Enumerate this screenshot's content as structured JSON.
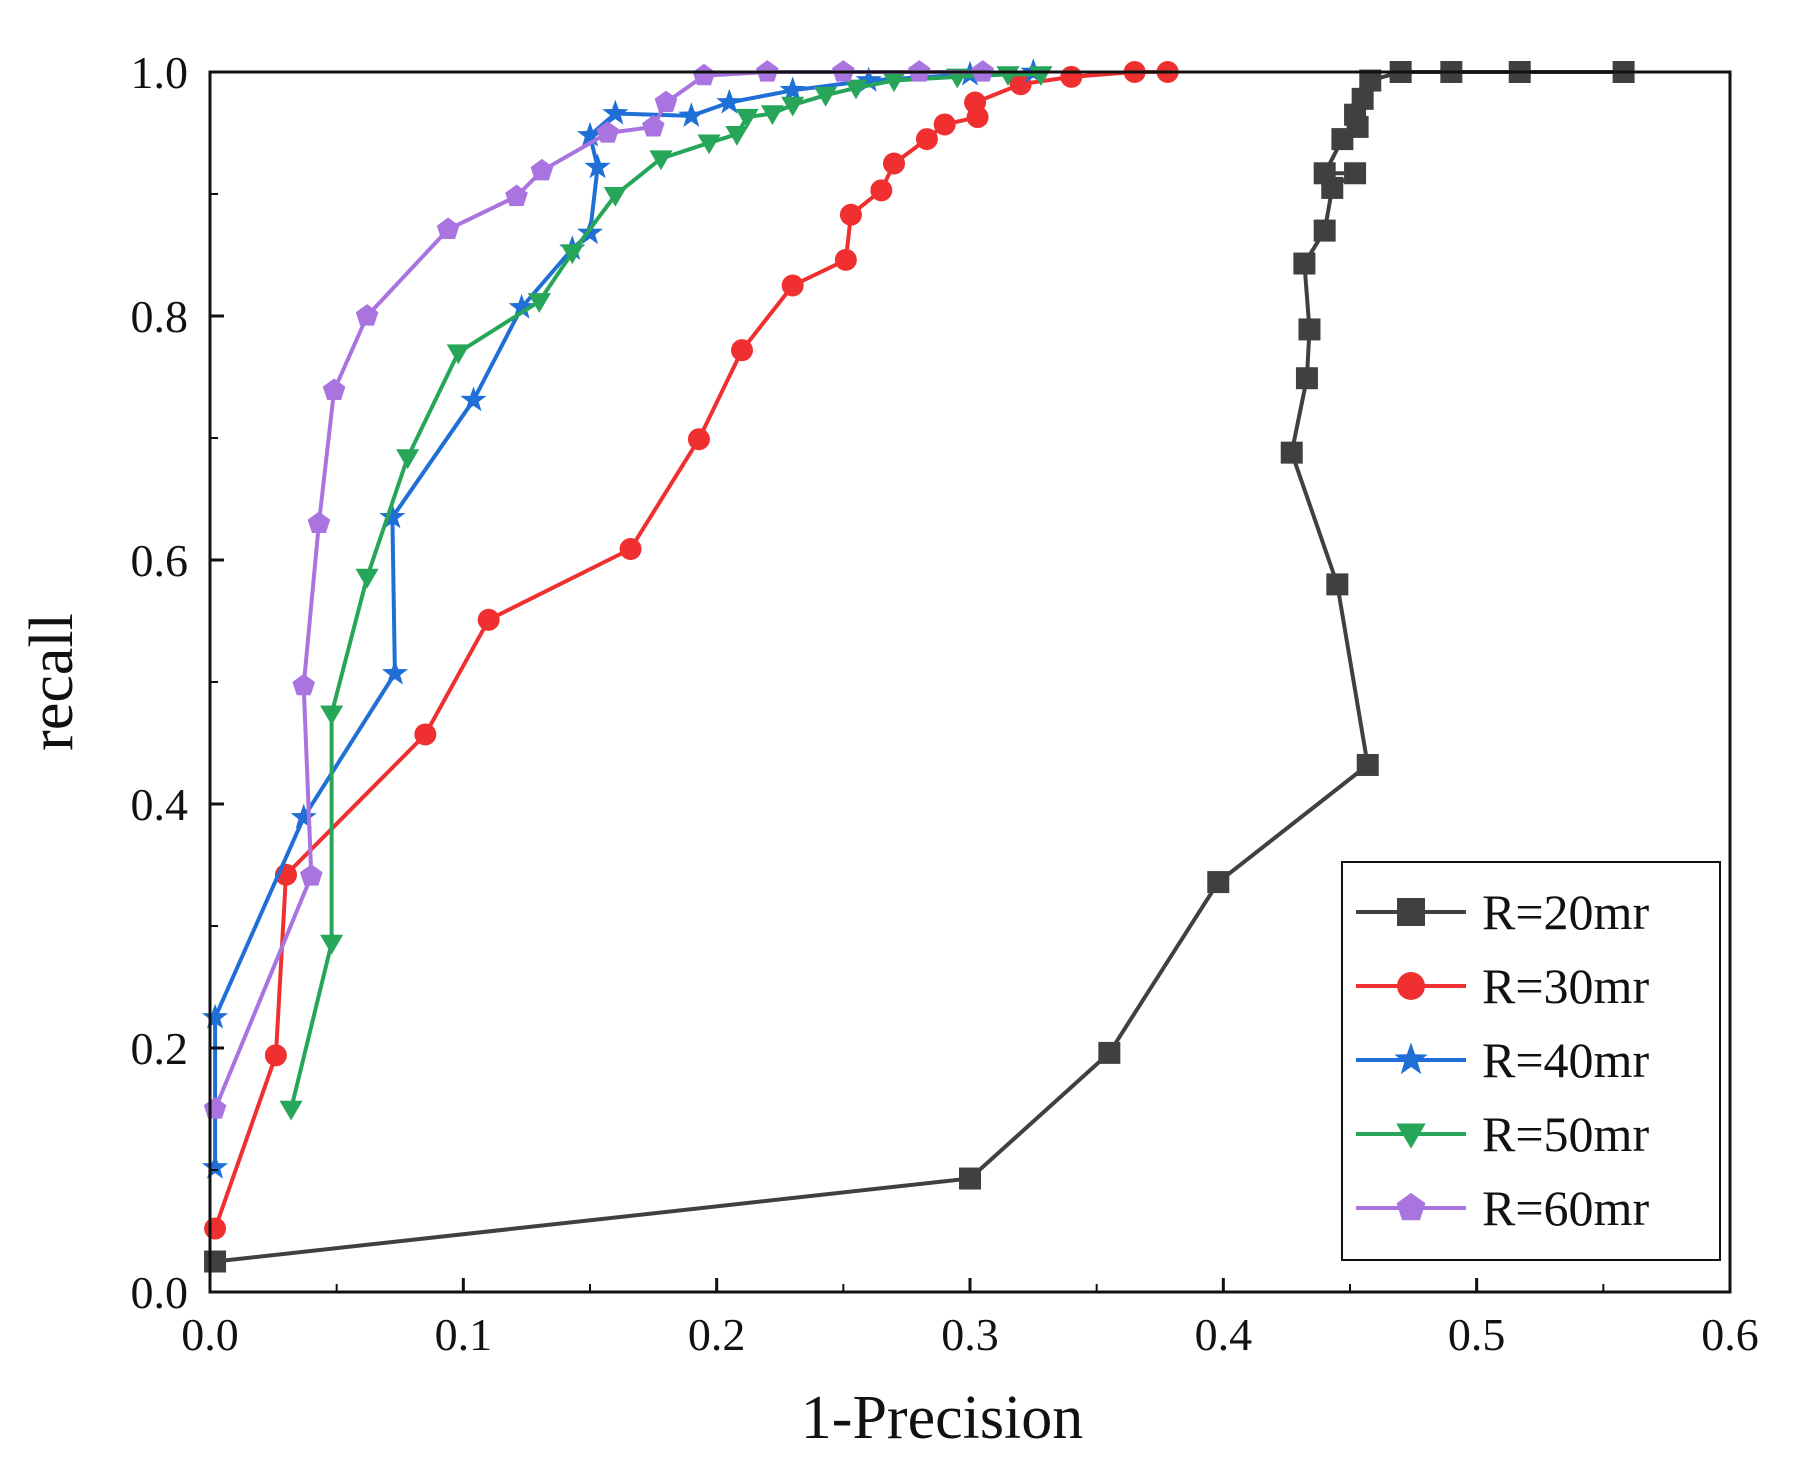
{
  "chart_data": {
    "type": "line",
    "title": "",
    "xlabel": "1-Precision",
    "ylabel": "recall",
    "xlim": [
      0.0,
      0.6
    ],
    "ylim": [
      0.0,
      1.0
    ],
    "xticks": [
      "0.0",
      "0.1",
      "0.2",
      "0.3",
      "0.4",
      "0.5",
      "0.6"
    ],
    "yticks": [
      "0.0",
      "0.2",
      "0.4",
      "0.6",
      "0.8",
      "1.0"
    ],
    "grid": false,
    "legend_position": "bottom-right",
    "series": [
      {
        "name": "R=20mr",
        "color": "#404040",
        "marker": "square",
        "points": [
          [
            0.002,
            0.025
          ],
          [
            0.3,
            0.093
          ],
          [
            0.355,
            0.196
          ],
          [
            0.398,
            0.336
          ],
          [
            0.457,
            0.432
          ],
          [
            0.445,
            0.58
          ],
          [
            0.427,
            0.688
          ],
          [
            0.433,
            0.749
          ],
          [
            0.434,
            0.789
          ],
          [
            0.432,
            0.843
          ],
          [
            0.44,
            0.87
          ],
          [
            0.443,
            0.905
          ],
          [
            0.452,
            0.917
          ],
          [
            0.44,
            0.917
          ],
          [
            0.447,
            0.945
          ],
          [
            0.453,
            0.955
          ],
          [
            0.452,
            0.965
          ],
          [
            0.455,
            0.978
          ],
          [
            0.458,
            0.993
          ],
          [
            0.47,
            1.0
          ],
          [
            0.49,
            1.0
          ],
          [
            0.517,
            1.0
          ],
          [
            0.558,
            1.0
          ]
        ]
      },
      {
        "name": "R=30mr",
        "color": "#f03030",
        "marker": "circle",
        "points": [
          [
            0.002,
            0.052
          ],
          [
            0.026,
            0.194
          ],
          [
            0.03,
            0.342
          ],
          [
            0.085,
            0.457
          ],
          [
            0.11,
            0.551
          ],
          [
            0.166,
            0.609
          ],
          [
            0.193,
            0.699
          ],
          [
            0.21,
            0.772
          ],
          [
            0.23,
            0.825
          ],
          [
            0.251,
            0.846
          ],
          [
            0.253,
            0.883
          ],
          [
            0.265,
            0.903
          ],
          [
            0.27,
            0.925
          ],
          [
            0.283,
            0.945
          ],
          [
            0.29,
            0.957
          ],
          [
            0.303,
            0.963
          ],
          [
            0.302,
            0.975
          ],
          [
            0.32,
            0.99
          ],
          [
            0.34,
            0.996
          ],
          [
            0.365,
            1.0
          ],
          [
            0.378,
            1.0
          ]
        ]
      },
      {
        "name": "R=40mr",
        "color": "#1f6fd6",
        "marker": "star",
        "points": [
          [
            0.002,
            0.102
          ],
          [
            0.002,
            0.225
          ],
          [
            0.037,
            0.389
          ],
          [
            0.073,
            0.507
          ],
          [
            0.072,
            0.635
          ],
          [
            0.104,
            0.731
          ],
          [
            0.123,
            0.807
          ],
          [
            0.143,
            0.855
          ],
          [
            0.15,
            0.868
          ],
          [
            0.153,
            0.922
          ],
          [
            0.15,
            0.948
          ],
          [
            0.16,
            0.966
          ],
          [
            0.19,
            0.964
          ],
          [
            0.205,
            0.975
          ],
          [
            0.23,
            0.985
          ],
          [
            0.26,
            0.993
          ],
          [
            0.3,
            0.998
          ],
          [
            0.325,
            1.0
          ]
        ]
      },
      {
        "name": "R=50mr",
        "color": "#27a65a",
        "marker": "triangle-down",
        "points": [
          [
            0.032,
            0.15
          ],
          [
            0.048,
            0.286
          ],
          [
            0.048,
            0.474
          ],
          [
            0.062,
            0.586
          ],
          [
            0.078,
            0.684
          ],
          [
            0.098,
            0.77
          ],
          [
            0.13,
            0.812
          ],
          [
            0.143,
            0.852
          ],
          [
            0.16,
            0.899
          ],
          [
            0.178,
            0.929
          ],
          [
            0.197,
            0.942
          ],
          [
            0.208,
            0.949
          ],
          [
            0.212,
            0.963
          ],
          [
            0.222,
            0.966
          ],
          [
            0.23,
            0.973
          ],
          [
            0.243,
            0.981
          ],
          [
            0.255,
            0.987
          ],
          [
            0.27,
            0.993
          ],
          [
            0.295,
            0.996
          ],
          [
            0.315,
            0.998
          ],
          [
            0.328,
            0.998
          ]
        ]
      },
      {
        "name": "R=60mr",
        "color": "#a974e0",
        "marker": "pentagon",
        "points": [
          [
            0.002,
            0.15
          ],
          [
            0.04,
            0.341
          ],
          [
            0.037,
            0.497
          ],
          [
            0.043,
            0.63
          ],
          [
            0.049,
            0.739
          ],
          [
            0.062,
            0.8
          ],
          [
            0.094,
            0.871
          ],
          [
            0.121,
            0.898
          ],
          [
            0.131,
            0.919
          ],
          [
            0.157,
            0.95
          ],
          [
            0.175,
            0.955
          ],
          [
            0.18,
            0.975
          ],
          [
            0.195,
            0.997
          ],
          [
            0.22,
            1.0
          ],
          [
            0.25,
            1.0
          ],
          [
            0.28,
            1.0
          ],
          [
            0.305,
            1.0
          ]
        ]
      }
    ]
  }
}
